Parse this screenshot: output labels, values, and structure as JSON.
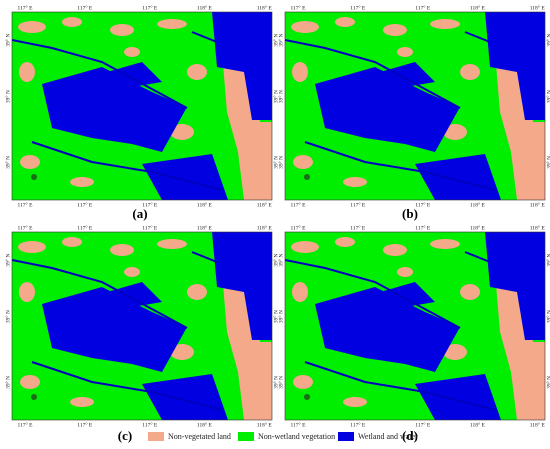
{
  "panels": [
    {
      "label": "(a)",
      "lon_labels": [
        "117° E",
        "117° E",
        "117° E",
        "118° E",
        "118° E"
      ],
      "lat_labels": [
        "39° N",
        "39° N",
        "39° N"
      ]
    },
    {
      "label": "(b)",
      "lon_labels": [
        "117° E",
        "117° E",
        "117° E",
        "118° E",
        "118° E"
      ],
      "lat_labels": [
        "39° N",
        "39° N",
        "39° N"
      ]
    },
    {
      "label": "(c)",
      "lon_labels": [
        "117° E",
        "117° E",
        "117° E",
        "118° E",
        "118° E"
      ],
      "lat_labels": [
        "39° N",
        "39° N",
        "39° N"
      ]
    },
    {
      "label": "(d)",
      "lon_labels": [
        "117° E",
        "117° E",
        "117° E",
        "118° E",
        "118° E"
      ],
      "lat_labels": [
        "39° N",
        "39° N",
        "39° N"
      ]
    }
  ],
  "legend": [
    {
      "label": "Non-vegetated land",
      "color": "#f4a98a"
    },
    {
      "label": "Non-wetland vegetation",
      "color": "#00ee00"
    },
    {
      "label": "Wetland and water",
      "color": "#0000e0"
    }
  ]
}
